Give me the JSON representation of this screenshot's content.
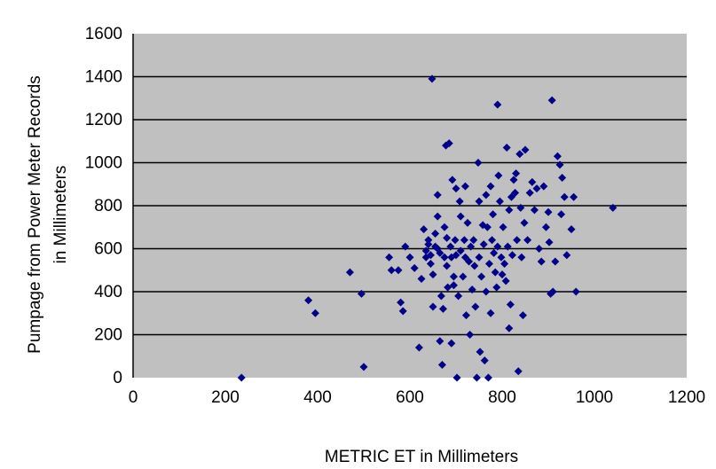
{
  "chart_data": {
    "type": "scatter",
    "xlabel": "METRIC ET in Millimeters",
    "ylabel_lines": [
      "Pumpage from Power Meter Records",
      "in Millimeters"
    ],
    "xlim": [
      0,
      1200
    ],
    "ylim": [
      0,
      1600
    ],
    "x_ticks": [
      0,
      200,
      400,
      600,
      800,
      1000,
      1200
    ],
    "y_ticks": [
      0,
      200,
      400,
      600,
      800,
      1000,
      1200,
      1400,
      1600
    ],
    "grid": "horizontal",
    "plot_background": "#c0c0c0",
    "marker_color": "#00008b",
    "marker": "diamond",
    "series": [
      {
        "points": [
          [
            235,
            0
          ],
          [
            380,
            360
          ],
          [
            395,
            300
          ],
          [
            470,
            490
          ],
          [
            495,
            390
          ],
          [
            500,
            50
          ],
          [
            555,
            560
          ],
          [
            560,
            500
          ],
          [
            575,
            500
          ],
          [
            580,
            350
          ],
          [
            585,
            310
          ],
          [
            590,
            610
          ],
          [
            600,
            560
          ],
          [
            610,
            510
          ],
          [
            620,
            140
          ],
          [
            625,
            460
          ],
          [
            630,
            690
          ],
          [
            635,
            590
          ],
          [
            635,
            560
          ],
          [
            640,
            620
          ],
          [
            640,
            640
          ],
          [
            645,
            570
          ],
          [
            645,
            530
          ],
          [
            648,
            1390
          ],
          [
            650,
            480
          ],
          [
            650,
            330
          ],
          [
            655,
            670
          ],
          [
            655,
            610
          ],
          [
            660,
            600
          ],
          [
            660,
            850
          ],
          [
            660,
            750
          ],
          [
            665,
            580
          ],
          [
            665,
            170
          ],
          [
            668,
            380
          ],
          [
            670,
            60
          ],
          [
            672,
            320
          ],
          [
            675,
            700
          ],
          [
            675,
            560
          ],
          [
            678,
            1080
          ],
          [
            680,
            650
          ],
          [
            680,
            520
          ],
          [
            682,
            420
          ],
          [
            685,
            1090
          ],
          [
            688,
            610
          ],
          [
            690,
            560
          ],
          [
            690,
            160
          ],
          [
            692,
            920
          ],
          [
            695,
            470
          ],
          [
            695,
            430
          ],
          [
            698,
            640
          ],
          [
            700,
            880
          ],
          [
            700,
            570
          ],
          [
            702,
            0
          ],
          [
            705,
            380
          ],
          [
            708,
            820
          ],
          [
            710,
            750
          ],
          [
            710,
            590
          ],
          [
            715,
            470
          ],
          [
            718,
            640
          ],
          [
            720,
            890
          ],
          [
            720,
            560
          ],
          [
            722,
            290
          ],
          [
            725,
            720
          ],
          [
            728,
            540
          ],
          [
            730,
            200
          ],
          [
            732,
            610
          ],
          [
            735,
            410
          ],
          [
            738,
            640
          ],
          [
            740,
            520
          ],
          [
            742,
            330
          ],
          [
            745,
            0
          ],
          [
            748,
            1000
          ],
          [
            750,
            820
          ],
          [
            750,
            560
          ],
          [
            752,
            120
          ],
          [
            755,
            470
          ],
          [
            758,
            710
          ],
          [
            760,
            620
          ],
          [
            762,
            80
          ],
          [
            765,
            850
          ],
          [
            765,
            400
          ],
          [
            768,
            700
          ],
          [
            770,
            0
          ],
          [
            772,
            530
          ],
          [
            775,
            890
          ],
          [
            775,
            300
          ],
          [
            778,
            640
          ],
          [
            780,
            760
          ],
          [
            782,
            580
          ],
          [
            785,
            490
          ],
          [
            788,
            420
          ],
          [
            790,
            1270
          ],
          [
            790,
            610
          ],
          [
            792,
            940
          ],
          [
            795,
            820
          ],
          [
            798,
            560
          ],
          [
            800,
            480
          ],
          [
            802,
            700
          ],
          [
            805,
            530
          ],
          [
            808,
            450
          ],
          [
            810,
            1070
          ],
          [
            812,
            610
          ],
          [
            815,
            780
          ],
          [
            815,
            230
          ],
          [
            818,
            340
          ],
          [
            820,
            840
          ],
          [
            822,
            570
          ],
          [
            825,
            920
          ],
          [
            828,
            860
          ],
          [
            830,
            950
          ],
          [
            832,
            640
          ],
          [
            835,
            30
          ],
          [
            838,
            1040
          ],
          [
            840,
            790
          ],
          [
            842,
            560
          ],
          [
            845,
            290
          ],
          [
            848,
            720
          ],
          [
            850,
            1060
          ],
          [
            855,
            640
          ],
          [
            860,
            860
          ],
          [
            865,
            910
          ],
          [
            870,
            780
          ],
          [
            875,
            880
          ],
          [
            880,
            600
          ],
          [
            885,
            540
          ],
          [
            890,
            890
          ],
          [
            895,
            700
          ],
          [
            900,
            770
          ],
          [
            902,
            630
          ],
          [
            905,
            390
          ],
          [
            908,
            1290
          ],
          [
            910,
            400
          ],
          [
            915,
            540
          ],
          [
            920,
            1030
          ],
          [
            925,
            990
          ],
          [
            928,
            760
          ],
          [
            930,
            930
          ],
          [
            935,
            840
          ],
          [
            940,
            570
          ],
          [
            950,
            690
          ],
          [
            955,
            840
          ],
          [
            960,
            400
          ],
          [
            1040,
            790
          ]
        ]
      }
    ]
  }
}
